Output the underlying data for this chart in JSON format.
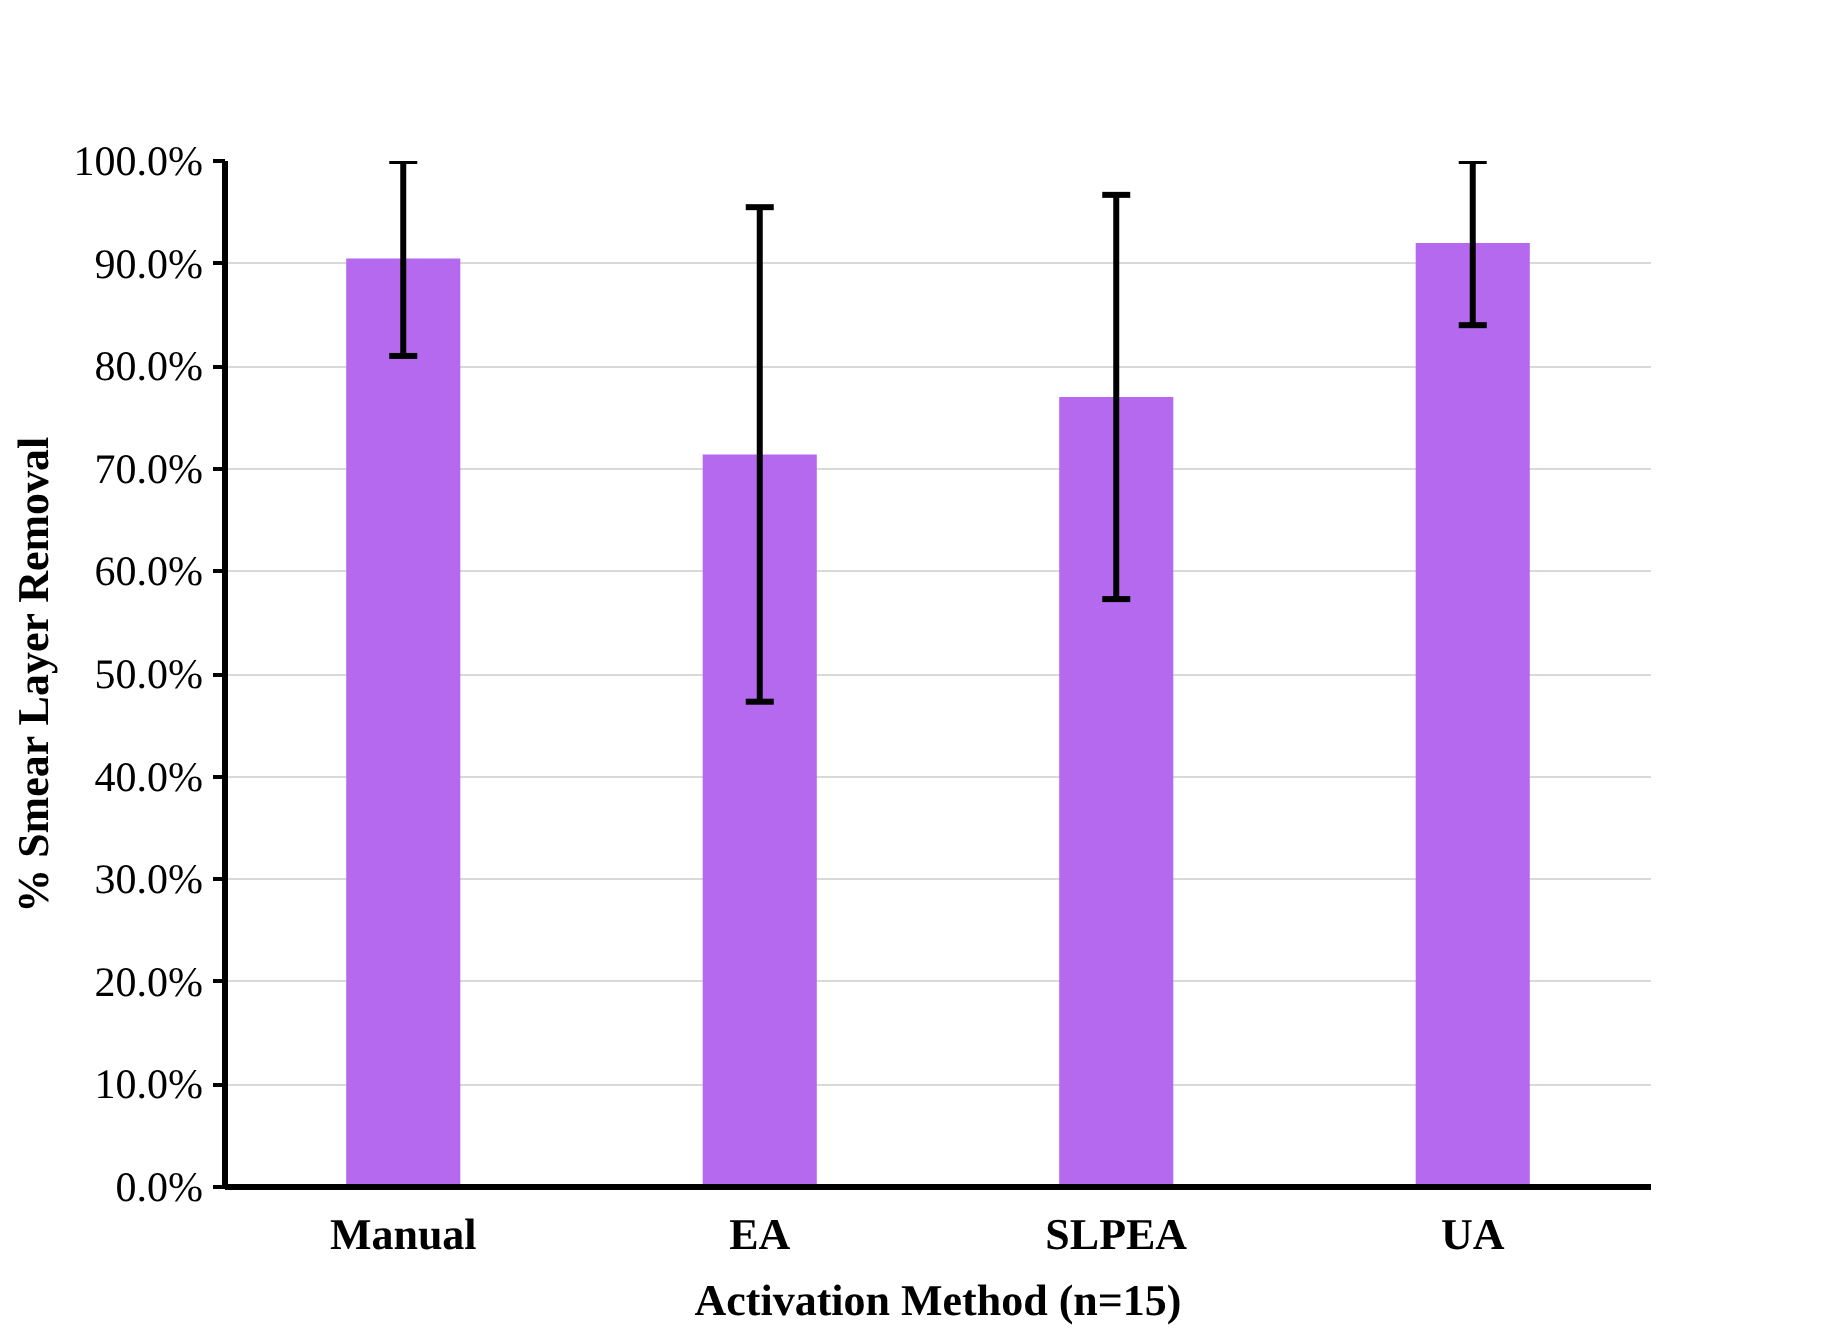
{
  "chart_data": {
    "type": "bar",
    "xlabel": "Activation Method (n=15)",
    "ylabel": "% Smear Layer Removal",
    "categories": [
      "Manual",
      "EA",
      "SLPEA",
      "UA"
    ],
    "values": [
      90.5,
      71.4,
      77.0,
      92.0
    ],
    "errors": [
      9.5,
      24.1,
      19.7,
      8.0
    ],
    "color": "#b469ef",
    "ylim": [
      0,
      100
    ],
    "yticks": [
      {
        "value": 0,
        "label": "0.0%"
      },
      {
        "value": 10,
        "label": "10.0%"
      },
      {
        "value": 20,
        "label": "20.0%"
      },
      {
        "value": 30,
        "label": "30.0%"
      },
      {
        "value": 40,
        "label": "40.0%"
      },
      {
        "value": 50,
        "label": "50.0%"
      },
      {
        "value": 60,
        "label": "60.0%"
      },
      {
        "value": 70,
        "label": "70.0%"
      },
      {
        "value": 80,
        "label": "80.0%"
      },
      {
        "value": 90,
        "label": "90.0%"
      },
      {
        "value": 100,
        "label": "100.0%"
      }
    ],
    "grid": "y"
  }
}
